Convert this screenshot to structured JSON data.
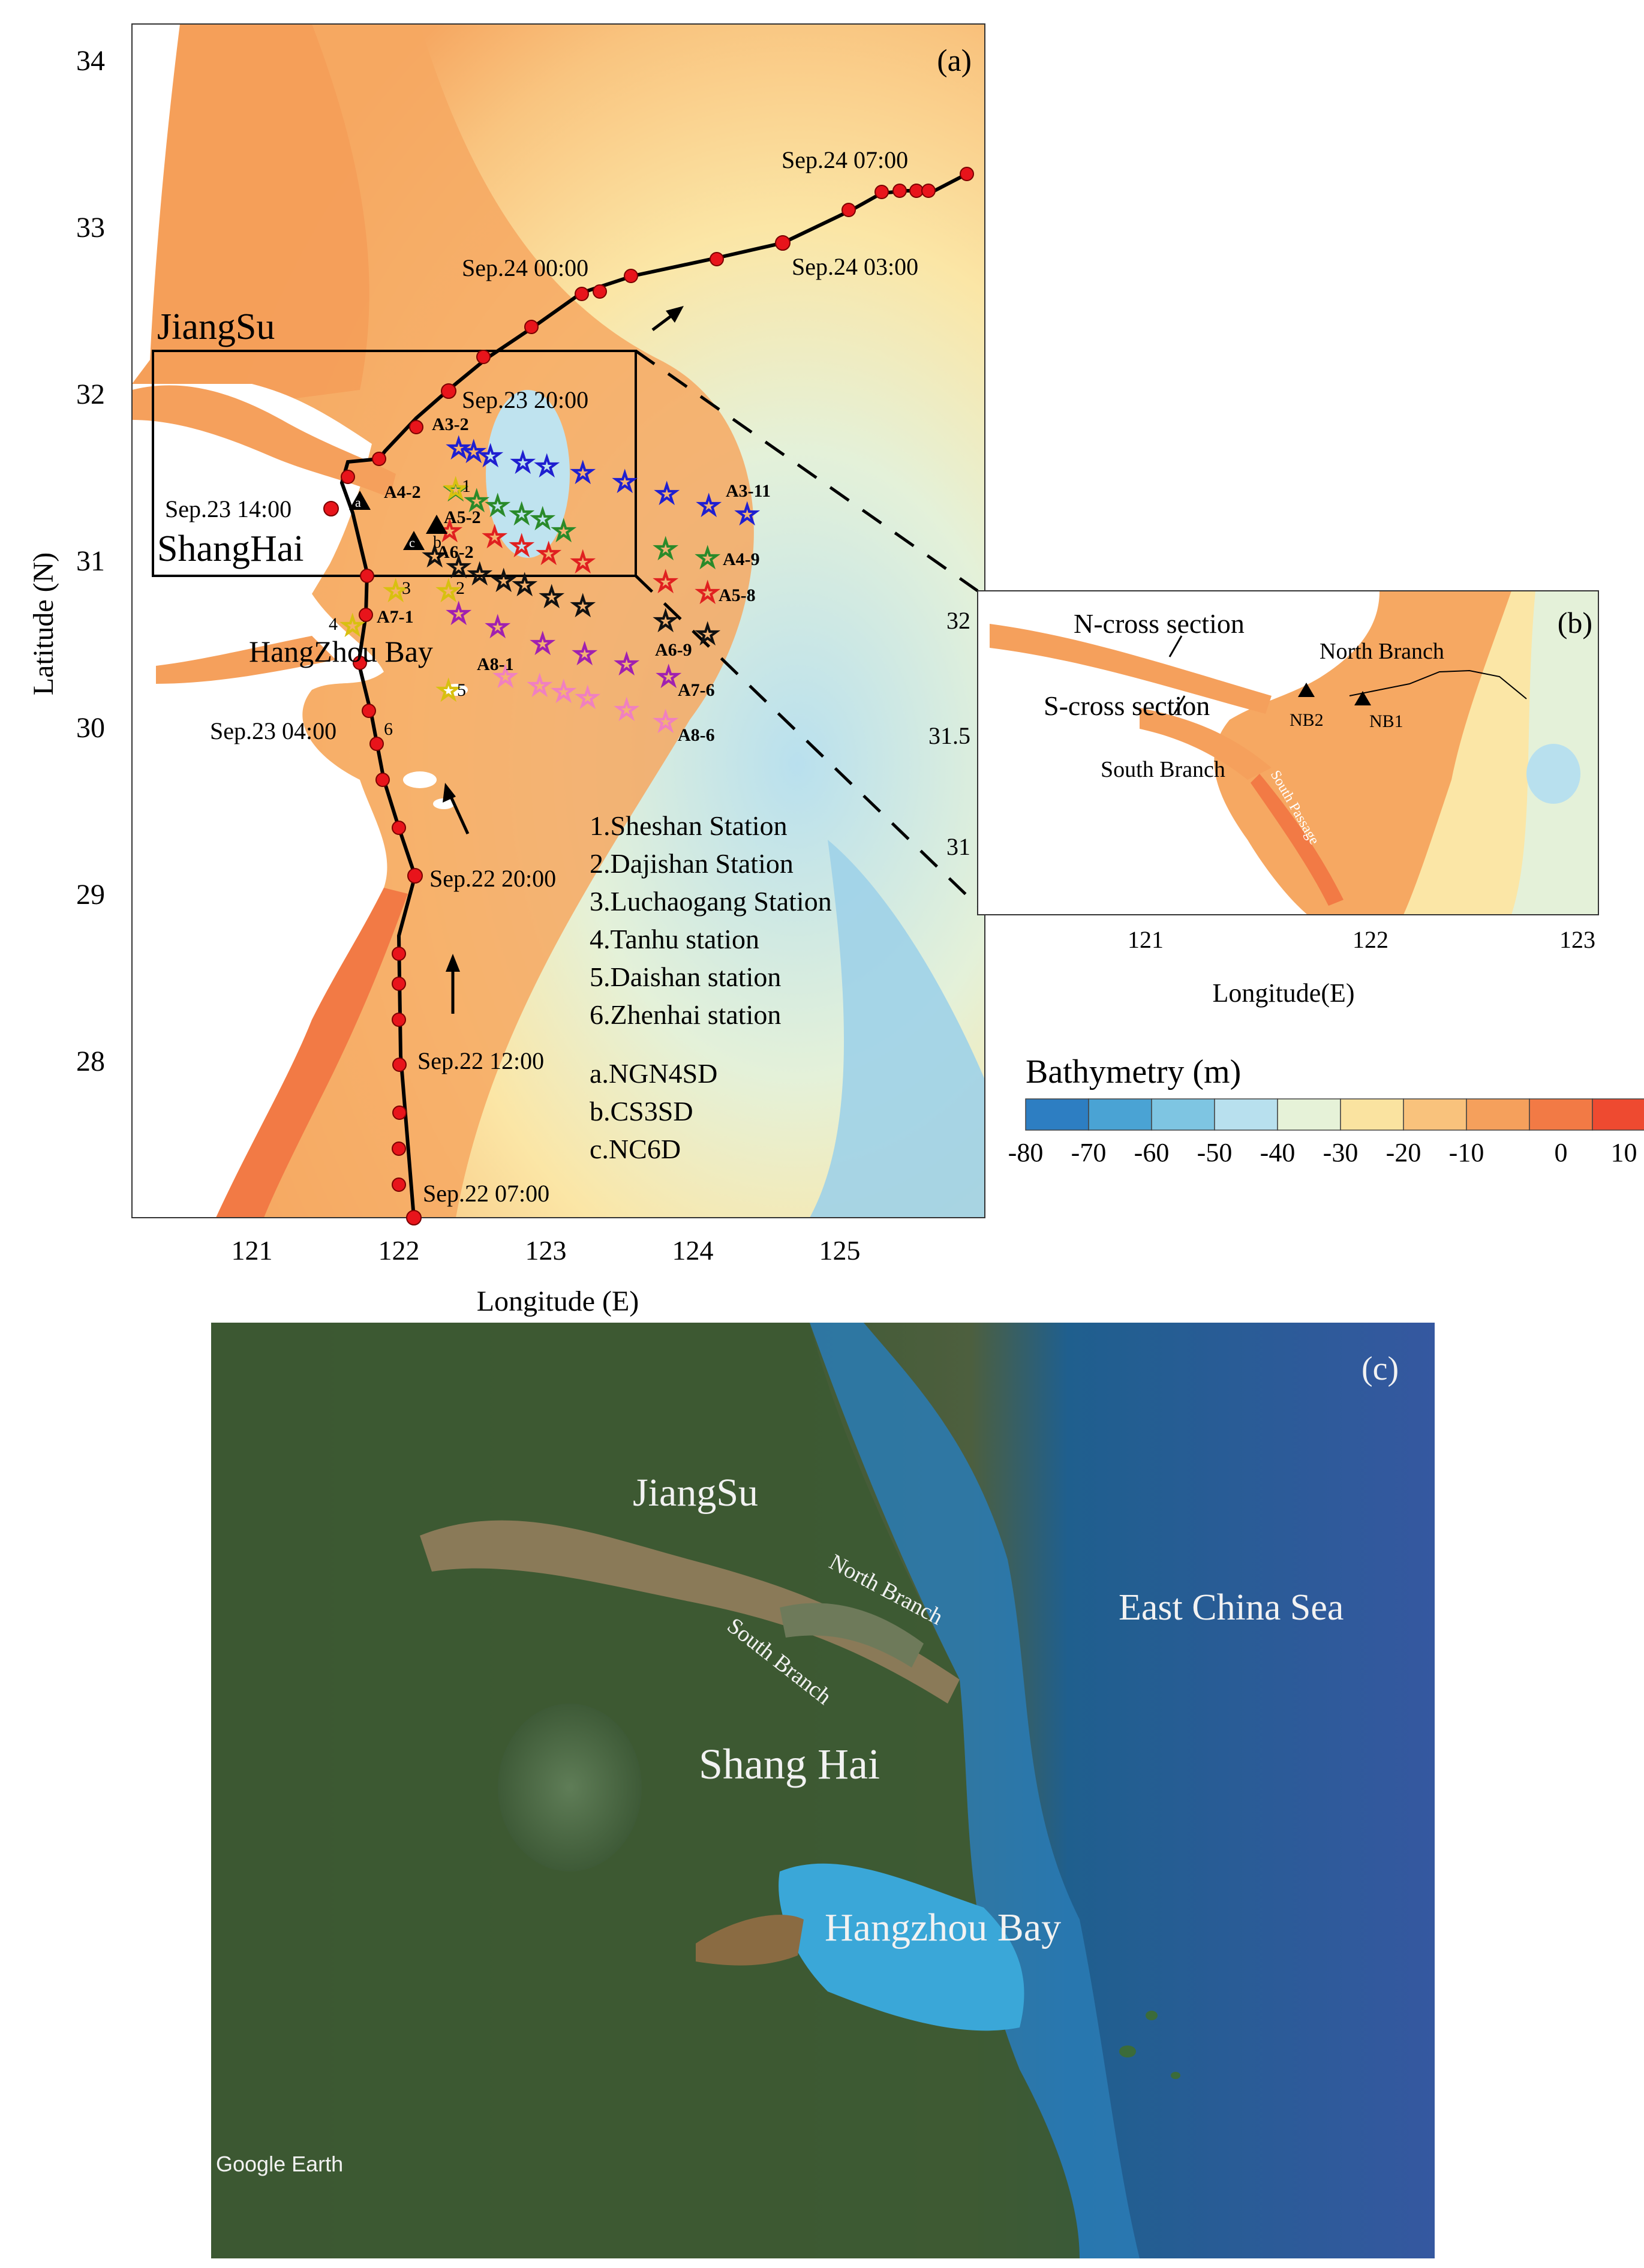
{
  "panel_a": {
    "label": "(a)",
    "xlabel": "Longitude (E)",
    "ylabel": "Latitude (N)",
    "lat_ticks": [
      "34",
      "33",
      "32",
      "31",
      "30",
      "29",
      "28"
    ],
    "lon_ticks": [
      "121",
      "122",
      "123",
      "124",
      "125"
    ],
    "region_labels": {
      "jiangsu": "JiangSu",
      "shanghai": "ShangHai",
      "hangzhou_bay": "HangZhou Bay"
    },
    "track_times": [
      "Sep.24 07:00",
      "Sep.24 00:00",
      "Sep.24 03:00",
      "Sep.23 20:00",
      "Sep.23 14:00",
      "Sep.23 04:00",
      "Sep.22 20:00",
      "Sep.22 12:00",
      "Sep.22 07:00"
    ],
    "station_labels": [
      "A3-2",
      "A3-11",
      "A4-2",
      "A4-9",
      "A5-2",
      "A5-8",
      "A6-2",
      "A6-9",
      "A7-1",
      "A7-6",
      "A8-1",
      "A8-6"
    ],
    "station_numbers": [
      "1",
      "2",
      "3",
      "4",
      "5",
      "6"
    ],
    "marker_letters": [
      "a",
      "b",
      "c"
    ],
    "legend_stations": [
      "1.Sheshan Station",
      "2.Dajishan Station",
      "3.Luchaogang Station",
      "4.Tanhu station",
      "5.Daishan station",
      "6.Zhenhai station"
    ],
    "legend_instruments": [
      "a.NGN4SD",
      "b.CS3SD",
      "c.NC6D"
    ]
  },
  "panel_b": {
    "label": "(b)",
    "xlabel": "Longitude(E)",
    "lat_ticks": [
      "32",
      "31.5",
      "31"
    ],
    "lon_ticks": [
      "121",
      "122",
      "123"
    ],
    "labels": {
      "n_cross": "N-cross section",
      "s_cross": "S-cross section",
      "north_branch": "North Branch",
      "south_branch": "South Branch",
      "south_passage": "South Passage",
      "nb1": "NB1",
      "nb2": "NB2"
    }
  },
  "colorbar": {
    "title": "Bathymetry (m)",
    "ticks": [
      "-80",
      "-70",
      "-60",
      "-50",
      "-40",
      "-30",
      "-20",
      "-10",
      "0",
      "10"
    ],
    "colors": [
      "#2d7ec2",
      "#4aa3d4",
      "#7ec5e2",
      "#b8e0ee",
      "#e6f2d8",
      "#fae3a0",
      "#f9c27c",
      "#f5a05c",
      "#f27a45",
      "#ee4a30"
    ]
  },
  "panel_c": {
    "label": "(c)",
    "labels": {
      "jiangsu": "JiangSu",
      "east_china_sea": "East China Sea",
      "north_branch": "North Branch",
      "south_branch": "South Branch",
      "shanghai": "Shang Hai",
      "hangzhou_bay": "Hangzhou Bay"
    },
    "watermark": "Google Earth"
  }
}
